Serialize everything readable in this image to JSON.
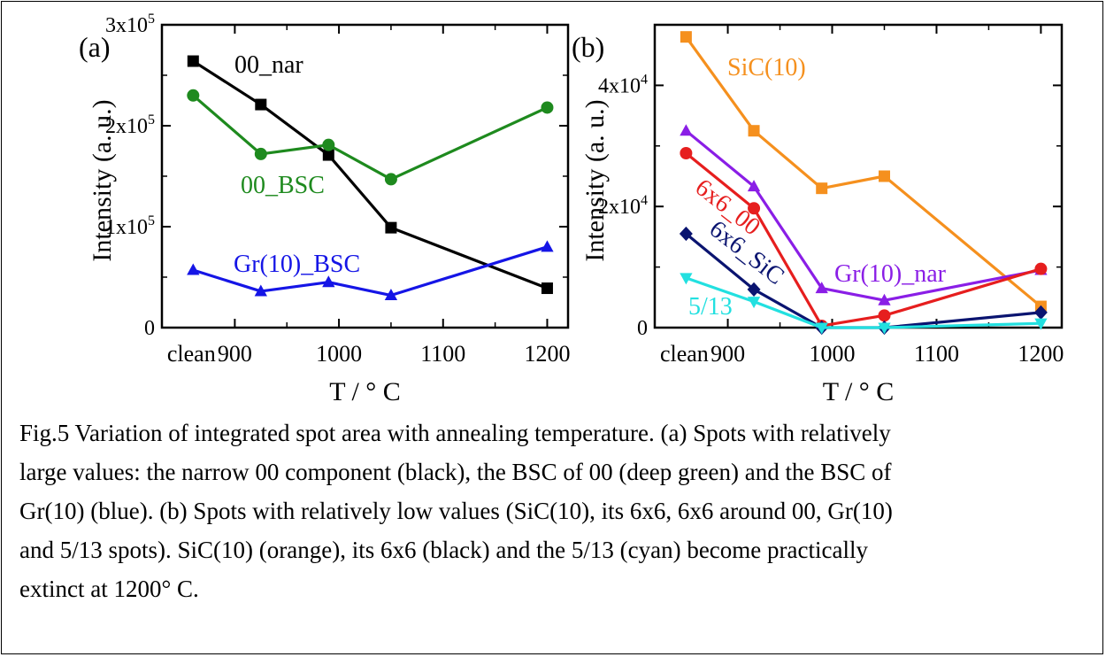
{
  "chart_data": [
    {
      "type": "line",
      "panel_label": "(a)",
      "xlabel": "T / ° C",
      "ylabel": "Intensity (a. u.)",
      "x_ticks": [
        {
          "value": 860,
          "label": "clean"
        },
        {
          "value": 900,
          "label": "900"
        },
        {
          "value": 1000,
          "label": "1000"
        },
        {
          "value": 1100,
          "label": "1100"
        },
        {
          "value": 1200,
          "label": "1200"
        }
      ],
      "xlim": [
        830,
        1220
      ],
      "ylim": [
        0,
        300000
      ],
      "y_ticks": [
        {
          "value": 0,
          "label": "0",
          "exp": ""
        },
        {
          "value": 100000,
          "label": "1x10",
          "exp": "5"
        },
        {
          "value": 200000,
          "label": "2x10",
          "exp": "5"
        },
        {
          "value": 300000,
          "label": "3x10",
          "exp": "5"
        }
      ],
      "series": [
        {
          "name": "00_nar",
          "color": "#000000",
          "marker": "square",
          "x": [
            860,
            925,
            990,
            1050,
            1200
          ],
          "y": [
            264000,
            221000,
            171000,
            99000,
            39000
          ]
        },
        {
          "name": "00_BSC",
          "color": "#1e8a1e",
          "marker": "circle",
          "x": [
            860,
            925,
            990,
            1050,
            1200
          ],
          "y": [
            230000,
            172000,
            181000,
            147000,
            218000
          ]
        },
        {
          "name": "Gr(10)_BSC",
          "color": "#1515e6",
          "marker": "triangle-up",
          "x": [
            860,
            925,
            990,
            1050,
            1200
          ],
          "y": [
            57000,
            36000,
            45000,
            32000,
            80000
          ]
        }
      ]
    },
    {
      "type": "line",
      "panel_label": "(b)",
      "xlabel": "T / ° C",
      "ylabel": "Intensity (a. u.)",
      "x_ticks": [
        {
          "value": 860,
          "label": "clean"
        },
        {
          "value": 900,
          "label": "900"
        },
        {
          "value": 1000,
          "label": "1000"
        },
        {
          "value": 1100,
          "label": "1100"
        },
        {
          "value": 1200,
          "label": "1200"
        }
      ],
      "xlim": [
        830,
        1220
      ],
      "ylim": [
        0,
        50000
      ],
      "y_ticks": [
        {
          "value": 0,
          "label": "0",
          "exp": ""
        },
        {
          "value": 20000,
          "label": "2x10",
          "exp": "4"
        },
        {
          "value": 40000,
          "label": "4x10",
          "exp": "4"
        }
      ],
      "series": [
        {
          "name": "SiC(10)",
          "color": "#f5901e",
          "marker": "square",
          "x": [
            860,
            925,
            990,
            1050,
            1200
          ],
          "y": [
            48000,
            32500,
            23000,
            25000,
            3500
          ]
        },
        {
          "name": "Gr(10)_nar",
          "color": "#8a1ee6",
          "marker": "triangle-up",
          "x": [
            860,
            925,
            990,
            1050,
            1200
          ],
          "y": [
            32500,
            23300,
            6500,
            4500,
            9500
          ]
        },
        {
          "name": "6x6_00",
          "color": "#e61e1e",
          "marker": "circle",
          "x": [
            860,
            925,
            990,
            1050,
            1200
          ],
          "y": [
            28800,
            19700,
            300,
            2000,
            9700
          ]
        },
        {
          "name": "6x6_SiC",
          "color": "#0a1470",
          "marker": "diamond",
          "x": [
            860,
            925,
            990,
            1050,
            1200
          ],
          "y": [
            15500,
            6300,
            0,
            0,
            2500
          ]
        },
        {
          "name": "5/13",
          "color": "#22e0e0",
          "marker": "triangle-down",
          "x": [
            860,
            925,
            990,
            1050,
            1200
          ],
          "y": [
            8200,
            4300,
            0,
            0,
            700
          ]
        }
      ]
    }
  ],
  "caption": {
    "lines": [
      "Fig.5 Variation of integrated spot area with annealing temperature. (a) Spots with relatively",
      "large values: the narrow 00 component (black), the BSC of 00 (deep green) and the BSC of",
      "Gr(10) (blue). (b) Spots with relatively low values (SiC(10), its 6x6, 6x6 around 00, Gr(10)",
      "and 5/13 spots). SiC(10) (orange), its 6x6 (black) and the 5/13 (cyan) become practically",
      "extinct at 1200° C."
    ]
  }
}
